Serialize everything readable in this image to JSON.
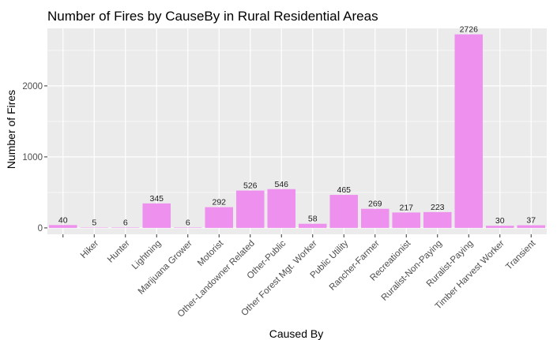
{
  "chart_data": {
    "type": "bar",
    "title": "Number of Fires by CauseBy in Rural Residential Areas",
    "xlabel": "Caused By",
    "ylabel": "Number of Fires",
    "categories": [
      "",
      "Hiker",
      "Hunter",
      "Lightning",
      "Marijuana Grower",
      "Motorist",
      "Other-Landowner Related",
      "Other-Public",
      "Other Forest Mgt. Worker",
      "Public Utility",
      "Rancher-Farmer",
      "Recreationist",
      "Ruralist-Non-Paying",
      "Ruralist-Paying",
      "Timber Harvest Worker",
      "Transient"
    ],
    "values": [
      40,
      5,
      6,
      345,
      6,
      292,
      526,
      546,
      58,
      465,
      269,
      217,
      223,
      2726,
      30,
      37
    ],
    "ylim": [
      -90,
      2810
    ],
    "yticks": [
      0,
      1000,
      2000
    ],
    "grid": true,
    "bar_color": "#ee90ee",
    "panel_color": "#ebebeb",
    "grid_color": "#ffffff"
  }
}
